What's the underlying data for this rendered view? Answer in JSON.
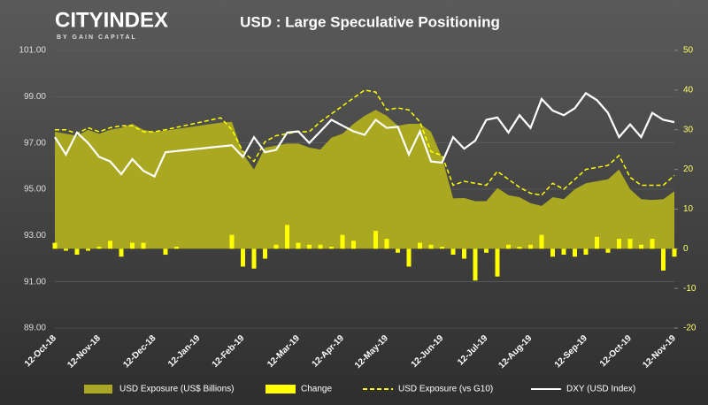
{
  "logo": {
    "name": "CITYINDEX",
    "tagline": "BY GAIN CAPITAL"
  },
  "chart_data": {
    "type": "combo",
    "title": "USD : Large Speculative Positioning",
    "categories": [
      "12-Oct-18",
      null,
      null,
      null,
      "12-Nov-18",
      null,
      null,
      null,
      null,
      "12-Dec-18",
      null,
      null,
      null,
      "12-Jan-19",
      null,
      null,
      null,
      "12-Feb-19",
      null,
      null,
      null,
      null,
      "12-Mar-19",
      null,
      null,
      null,
      "12-Apr-19",
      null,
      null,
      null,
      "12-May-19",
      null,
      null,
      null,
      null,
      "12-Jun-19",
      null,
      null,
      null,
      "12-Jul-19",
      null,
      null,
      null,
      "12-Aug-19",
      null,
      null,
      null,
      null,
      "12-Sep-19",
      null,
      null,
      null,
      "12-Oct-19",
      null,
      null,
      null,
      "12-Nov-19"
    ],
    "ylim": [
      89,
      101
    ],
    "yticks": [
      {
        "value": 89,
        "label": "89.00"
      },
      {
        "value": 91,
        "label": "91.00"
      },
      {
        "value": 93,
        "label": "93.00"
      },
      {
        "value": 95,
        "label": "95.00"
      },
      {
        "value": 97,
        "label": "97.00"
      },
      {
        "value": 99,
        "label": "99.00"
      },
      {
        "value": 101,
        "label": "101.00"
      }
    ],
    "y2lim": [
      -20,
      50
    ],
    "y2ticks": [
      -20,
      -10,
      0,
      10,
      20,
      30,
      40,
      50
    ],
    "series": [
      {
        "name": "USD Exposure (US$ Billions)",
        "type": "area",
        "axis": "y2",
        "color": "#a9a820",
        "values": [
          29.5,
          29,
          28.5,
          30,
          29,
          30,
          30.5,
          31.5,
          30,
          29.5,
          29.8,
          30.2,
          30.6,
          31,
          31.4,
          31.8,
          32,
          24,
          20,
          25.5,
          26,
          26.5,
          26.5,
          25.5,
          25,
          28,
          29,
          31.5,
          33.5,
          35,
          33.5,
          31,
          31.5,
          31.5,
          29.5,
          23,
          12.7,
          12.8,
          12,
          12,
          15.3,
          13.5,
          13,
          11.5,
          10.8,
          13,
          12.5,
          15,
          16.5,
          17,
          17.5,
          20,
          15,
          12.5,
          12.3,
          12.5,
          14.5
        ]
      },
      {
        "name": "Change",
        "type": "bar",
        "axis": "y2",
        "color": "#ffff00",
        "values": [
          1.5,
          -0.5,
          -1.5,
          -0.5,
          0.5,
          2,
          -2,
          1.5,
          1.5,
          0,
          -1.5,
          0.5,
          0,
          0,
          0,
          0,
          3.5,
          -4.5,
          -5,
          -2.5,
          1,
          6,
          1.5,
          1,
          1,
          0.5,
          3.5,
          2,
          0,
          4.5,
          2.5,
          -1,
          -4.5,
          1.5,
          1,
          0.5,
          -1.5,
          -2.5,
          -8,
          -1,
          -7,
          1,
          0.5,
          1,
          3.5,
          -2,
          -1.5,
          -2,
          -1.5,
          3,
          -1,
          2.5,
          2.5,
          1,
          2.5,
          -5.5,
          -2
        ]
      },
      {
        "name": "USD Exposure (vs G10)",
        "type": "line",
        "dashed": true,
        "axis": "y2",
        "color": "#ffff00",
        "values": [
          30,
          30,
          29,
          30.5,
          29.5,
          30.5,
          31,
          31,
          29.5,
          29.5,
          30,
          30.6,
          31.2,
          31.8,
          32.4,
          33,
          30,
          24.5,
          22,
          27,
          28.5,
          29,
          29.5,
          29.5,
          32,
          34,
          36,
          38,
          40,
          39.5,
          35,
          35.5,
          35,
          32,
          24.5,
          23.5,
          16,
          17,
          16.5,
          16,
          19.5,
          17.5,
          15.5,
          14,
          13.5,
          16.5,
          15,
          17.5,
          20,
          20.5,
          21,
          23.5,
          18,
          16,
          16,
          16,
          18.5
        ]
      },
      {
        "name": "DXY (USD Index)",
        "type": "line",
        "axis": "y",
        "color": "#ffffff",
        "values": [
          97.25,
          96.5,
          97.45,
          97.0,
          96.4,
          96.2,
          95.65,
          96.3,
          95.8,
          95.55,
          96.6,
          96.65,
          96.7,
          96.75,
          96.8,
          96.85,
          96.9,
          96.4,
          97.25,
          96.6,
          96.7,
          97.45,
          97.5,
          97.0,
          97.5,
          98.0,
          97.75,
          97.5,
          97.35,
          98.0,
          97.65,
          97.7,
          96.5,
          97.5,
          96.2,
          96.15,
          97.25,
          96.75,
          97.1,
          98.0,
          98.1,
          97.45,
          98.2,
          97.65,
          98.9,
          98.4,
          98.2,
          98.5,
          99.15,
          98.85,
          98.3,
          97.25,
          97.8,
          97.25,
          98.3,
          98.0,
          97.9
        ]
      }
    ]
  }
}
